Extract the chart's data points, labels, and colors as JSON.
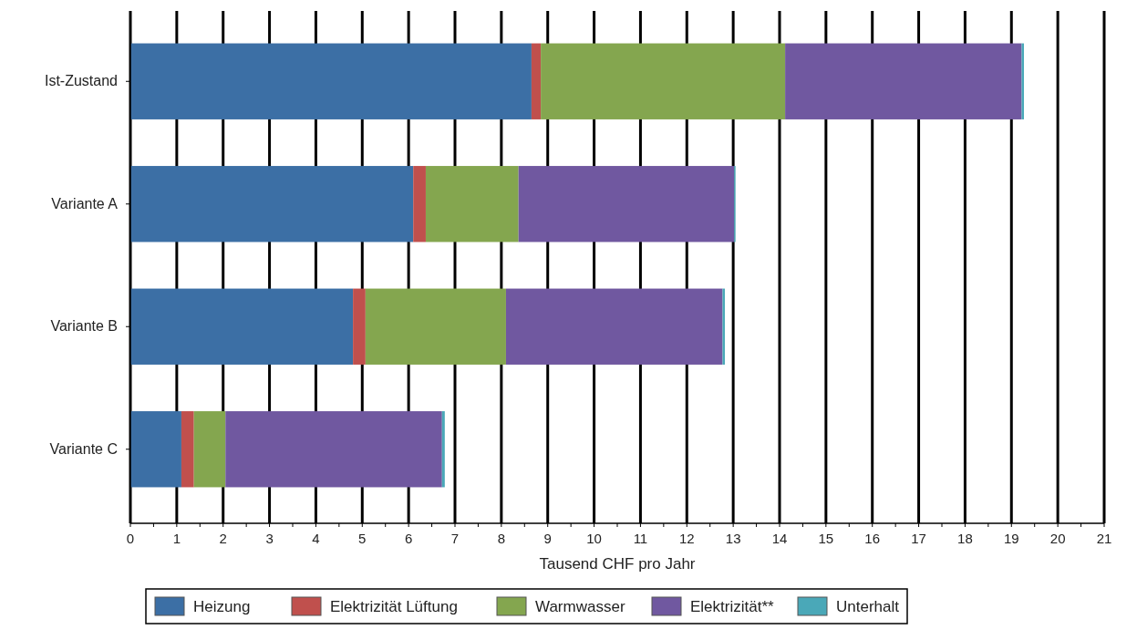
{
  "chart_data": {
    "type": "bar",
    "orientation": "horizontal",
    "stacked": true,
    "categories": [
      "Ist-Zustand",
      "Variante A",
      "Variante B",
      "Variante C"
    ],
    "xlabel": "Tausend CHF pro Jahr",
    "xlim": [
      0,
      21
    ],
    "xticks": [
      0,
      1,
      2,
      3,
      4,
      5,
      6,
      7,
      8,
      9,
      10,
      11,
      12,
      13,
      14,
      15,
      16,
      17,
      18,
      19,
      20,
      21
    ],
    "grid": "x",
    "legend": "bottom",
    "series": [
      {
        "name": "Heizung",
        "color": "#3c6fa5",
        "values": [
          8.65,
          6.1,
          4.8,
          1.1
        ]
      },
      {
        "name": "Elektrizität Lüftung",
        "color": "#c0504d",
        "values": [
          0.2,
          0.27,
          0.27,
          0.27
        ]
      },
      {
        "name": "Warmwasser",
        "color": "#84a64f",
        "values": [
          5.27,
          2.0,
          3.03,
          0.68
        ]
      },
      {
        "name": "Elektrizität**",
        "color": "#7058a0",
        "values": [
          5.1,
          4.65,
          4.67,
          4.67
        ]
      },
      {
        "name": "Unterhalt",
        "color": "#4aa8b8",
        "values": [
          0.05,
          0.03,
          0.05,
          0.06
        ]
      }
    ]
  }
}
